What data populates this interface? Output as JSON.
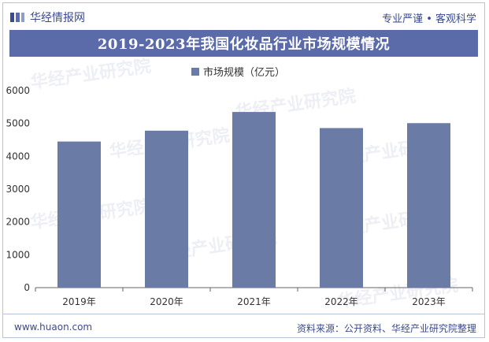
{
  "header": {
    "logo_text": "华经情报网",
    "logo_icon": "huajing-logo-icon",
    "slogan": "专业严谨 • 客观科学"
  },
  "footer": {
    "url": "www.huaon.com",
    "source": "资料来源：公开资料、华经产业研究院整理"
  },
  "watermark": {
    "text": "华经产业研究院",
    "subtext": "www.huaon.com"
  },
  "colors": {
    "bar": "#6a7ba6",
    "title_bg": "#5b6aa8",
    "brand": "#3b4a8c"
  },
  "chart_data": {
    "type": "bar",
    "title": "2019-2023年我国化妆品行业市场规模情况",
    "categories": [
      "2019年",
      "2020年",
      "2021年",
      "2022年",
      "2023年"
    ],
    "series": [
      {
        "name": "市场规模（亿元）",
        "values": [
          4450,
          4780,
          5350,
          4860,
          5010
        ]
      }
    ],
    "xlabel": "",
    "ylabel": "",
    "ylim": [
      0,
      6000
    ],
    "yticks": [
      0,
      1000,
      2000,
      3000,
      4000,
      5000,
      6000
    ],
    "grid": false,
    "legend": "top-center"
  }
}
